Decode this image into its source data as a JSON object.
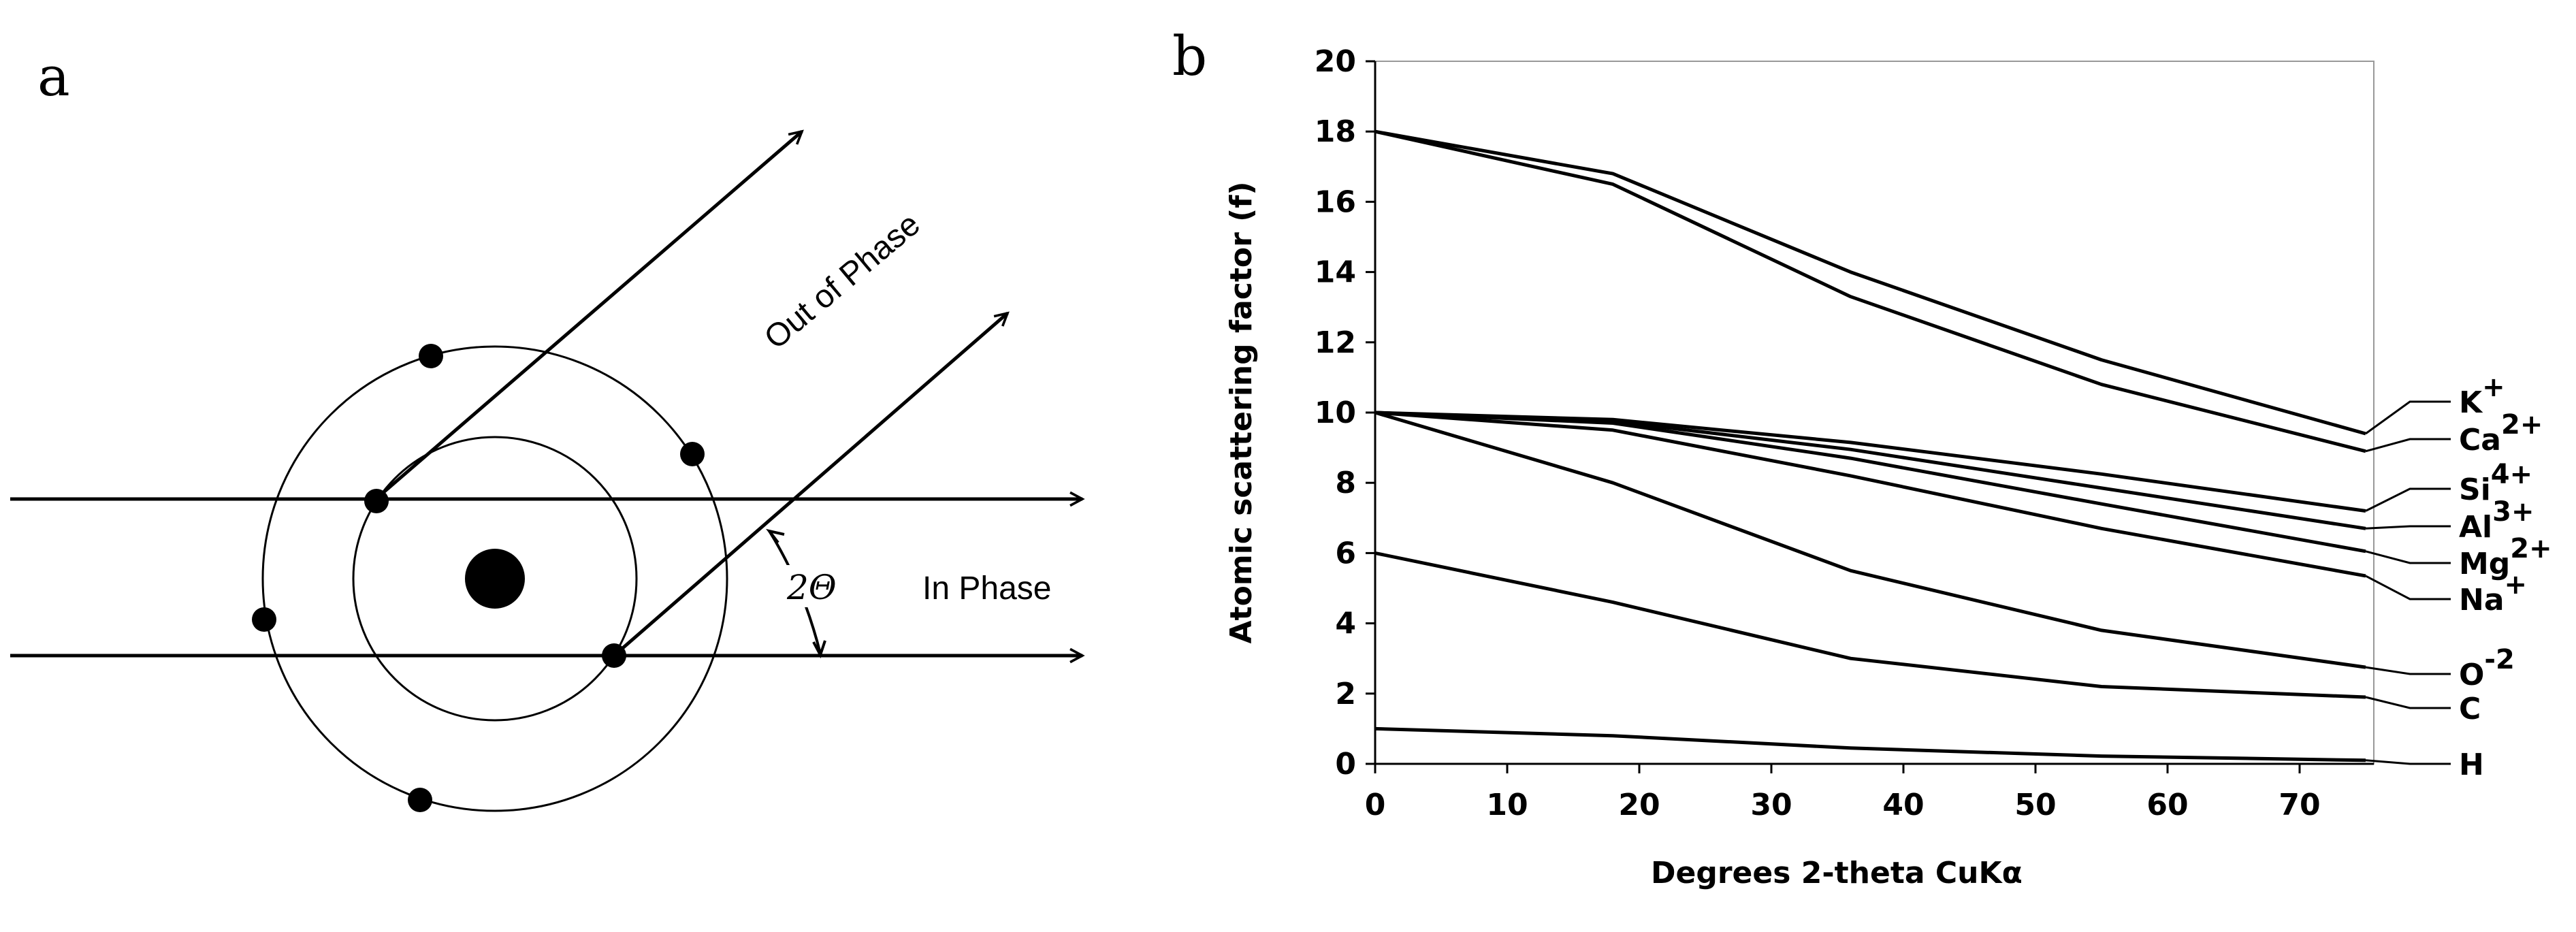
{
  "panel_a": {
    "letter": "a",
    "out_of_phase": "Out of Phase",
    "in_phase": "In Phase",
    "angle": "2Θ"
  },
  "panel_b": {
    "letter": "b"
  },
  "chart_data": {
    "type": "line",
    "title": "",
    "xlabel": "Degrees 2-theta CuKα",
    "ylabel": "Atomic scattering factor (f)",
    "xlim": [
      0,
      75
    ],
    "ylim": [
      0,
      20
    ],
    "x_ticks": [
      "0",
      "10",
      "20",
      "30",
      "40",
      "50",
      "60",
      "70"
    ],
    "y_ticks": [
      "0",
      "2",
      "4",
      "6",
      "8",
      "10",
      "12",
      "14",
      "16",
      "18",
      "20"
    ],
    "grid": false,
    "legend": "right side, leader-line labels",
    "x": [
      0,
      18,
      36,
      55,
      75
    ],
    "series": [
      {
        "name": "K",
        "sup": "+",
        "values": [
          18,
          16.8,
          14.0,
          11.5,
          9.4
        ]
      },
      {
        "name": "Ca",
        "sup": "2+",
        "values": [
          18,
          16.5,
          13.3,
          10.8,
          8.9
        ]
      },
      {
        "name": "Si",
        "sup": "4+",
        "values": [
          10,
          9.8,
          9.15,
          8.25,
          7.2
        ]
      },
      {
        "name": "Al",
        "sup": "3+",
        "values": [
          10,
          9.75,
          8.95,
          7.85,
          6.7
        ]
      },
      {
        "name": "Mg",
        "sup": "2+",
        "values": [
          10,
          9.7,
          8.7,
          7.4,
          6.05
        ]
      },
      {
        "name": "Na",
        "sup": "+",
        "values": [
          10,
          9.5,
          8.2,
          6.7,
          5.35
        ]
      },
      {
        "name": "O",
        "sup": "-2",
        "values": [
          10,
          8.0,
          5.5,
          3.8,
          2.75
        ]
      },
      {
        "name": "C",
        "sup": "",
        "values": [
          6,
          4.6,
          3.0,
          2.2,
          1.9
        ]
      },
      {
        "name": "H",
        "sup": "",
        "values": [
          1,
          0.8,
          0.45,
          0.22,
          0.1
        ]
      }
    ]
  }
}
